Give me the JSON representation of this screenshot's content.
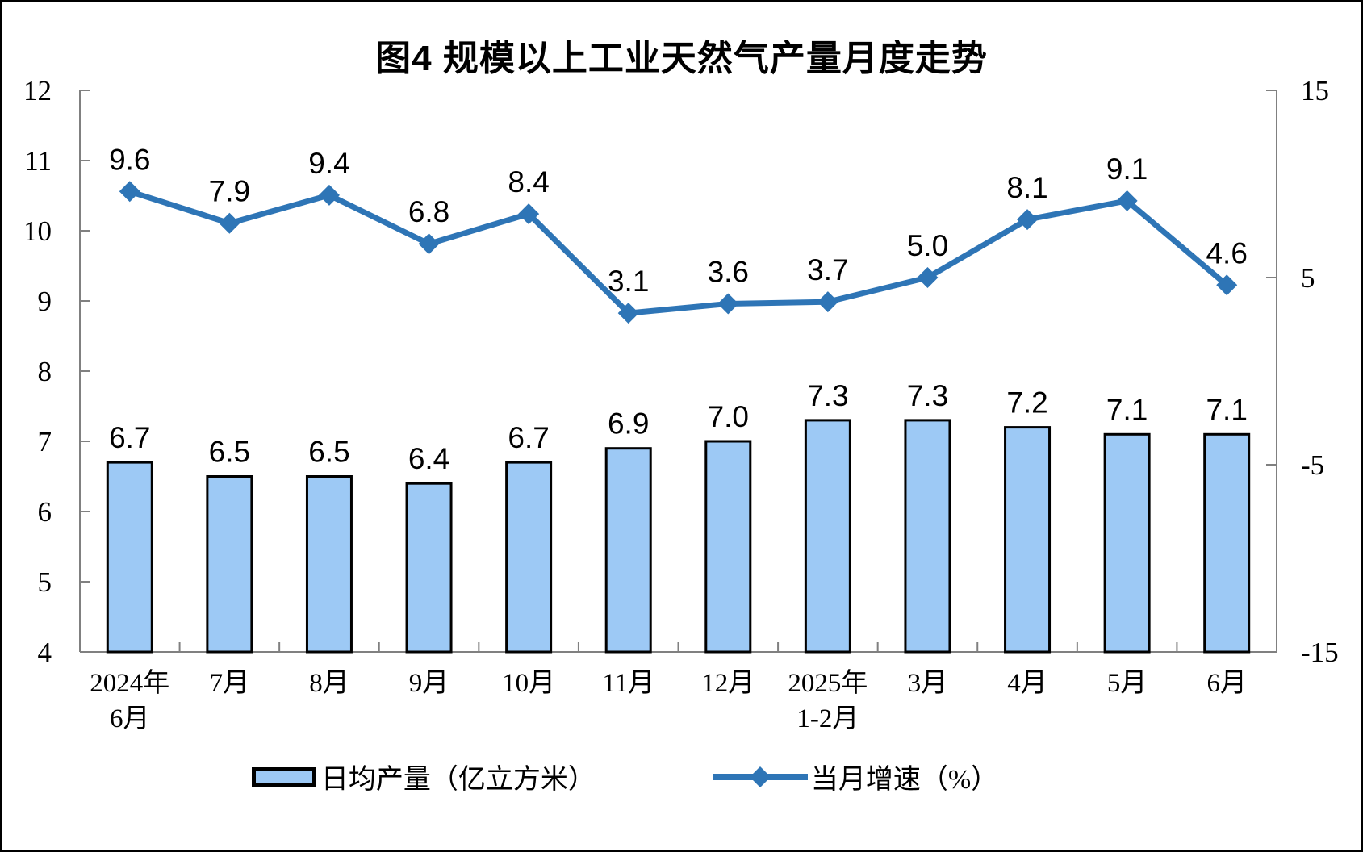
{
  "chart_data": {
    "type": "bar",
    "subtype": "combo-bar-line-dual-axis",
    "title": "图4 规模以上工业天然气产量月度走势",
    "categories": [
      "2024年\n6月",
      "7月",
      "8月",
      "9月",
      "10月",
      "11月",
      "12月",
      "2025年\n1-2月",
      "3月",
      "4月",
      "5月",
      "6月"
    ],
    "series": [
      {
        "name": "日均产量（亿立方米）",
        "type": "bar",
        "axis": "left",
        "values": [
          6.7,
          6.5,
          6.5,
          6.4,
          6.7,
          6.9,
          7.0,
          7.3,
          7.3,
          7.2,
          7.1,
          7.1
        ],
        "fill_color": "#9DC9F5",
        "border_color": "#000000"
      },
      {
        "name": "当月增速（%）",
        "type": "line",
        "axis": "right",
        "values": [
          9.6,
          7.9,
          9.4,
          6.8,
          8.4,
          3.1,
          3.6,
          3.7,
          5.0,
          8.1,
          9.1,
          4.6
        ],
        "color": "#2E75B6",
        "marker": "diamond"
      }
    ],
    "left_axis": {
      "min": 4,
      "max": 12,
      "ticks": [
        4,
        5,
        6,
        7,
        8,
        9,
        10,
        11,
        12
      ]
    },
    "right_axis": {
      "min": -15,
      "max": 15,
      "ticks": [
        -15,
        -5,
        5,
        15
      ]
    },
    "grid": false,
    "legend_position": "bottom",
    "data_labels": true,
    "axis_color": "#808080",
    "text_color": "#000000",
    "background_color": "#FFFFFF"
  }
}
